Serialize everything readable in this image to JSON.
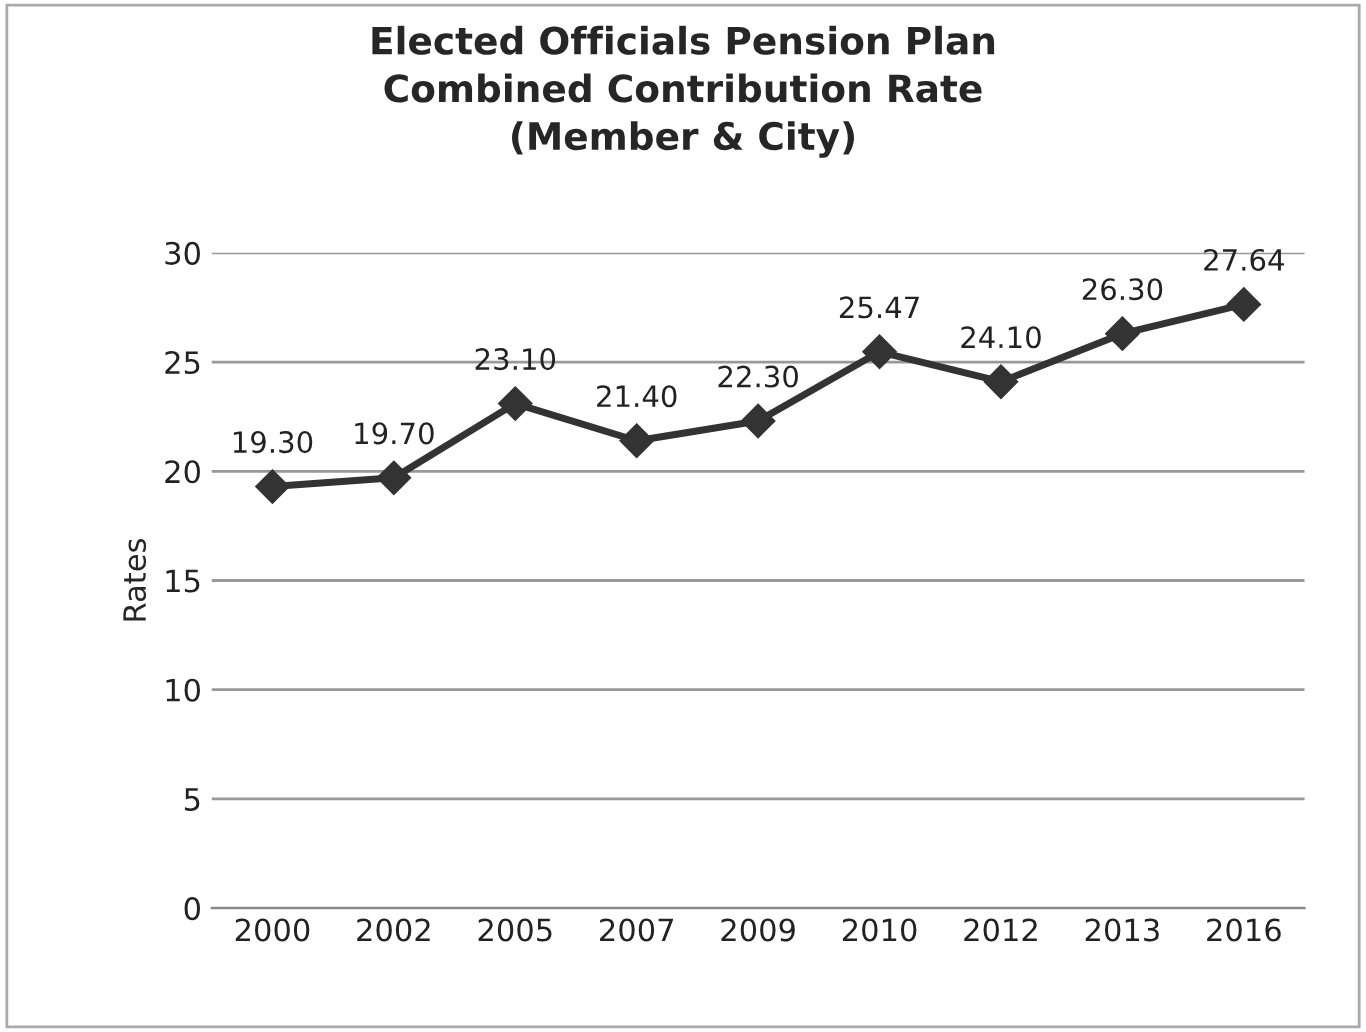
{
  "chart_data": {
    "type": "line",
    "title": "Elected Officials Pension Plan\nCombined Contribution Rate\n(Member & City)",
    "ylabel": "Rates",
    "categories": [
      "2000",
      "2002",
      "2005",
      "2007",
      "2009",
      "2010",
      "2012",
      "2013",
      "2016"
    ],
    "series": [
      {
        "color": "#333333",
        "values": [
          19.3,
          19.7,
          23.1,
          21.4,
          22.3,
          25.47,
          24.1,
          26.3,
          27.64
        ],
        "value_labels": [
          "19.30",
          "19.70",
          "23.10",
          "21.40",
          "22.30",
          "25.47",
          "24.10",
          "26.30",
          "27.64"
        ]
      }
    ],
    "ylim": [
      0,
      30
    ],
    "yticks": [
      0,
      5,
      10,
      15,
      20,
      25,
      30
    ],
    "grid": "y",
    "marker": "diamond",
    "line_style": "solid",
    "legend": false
  }
}
